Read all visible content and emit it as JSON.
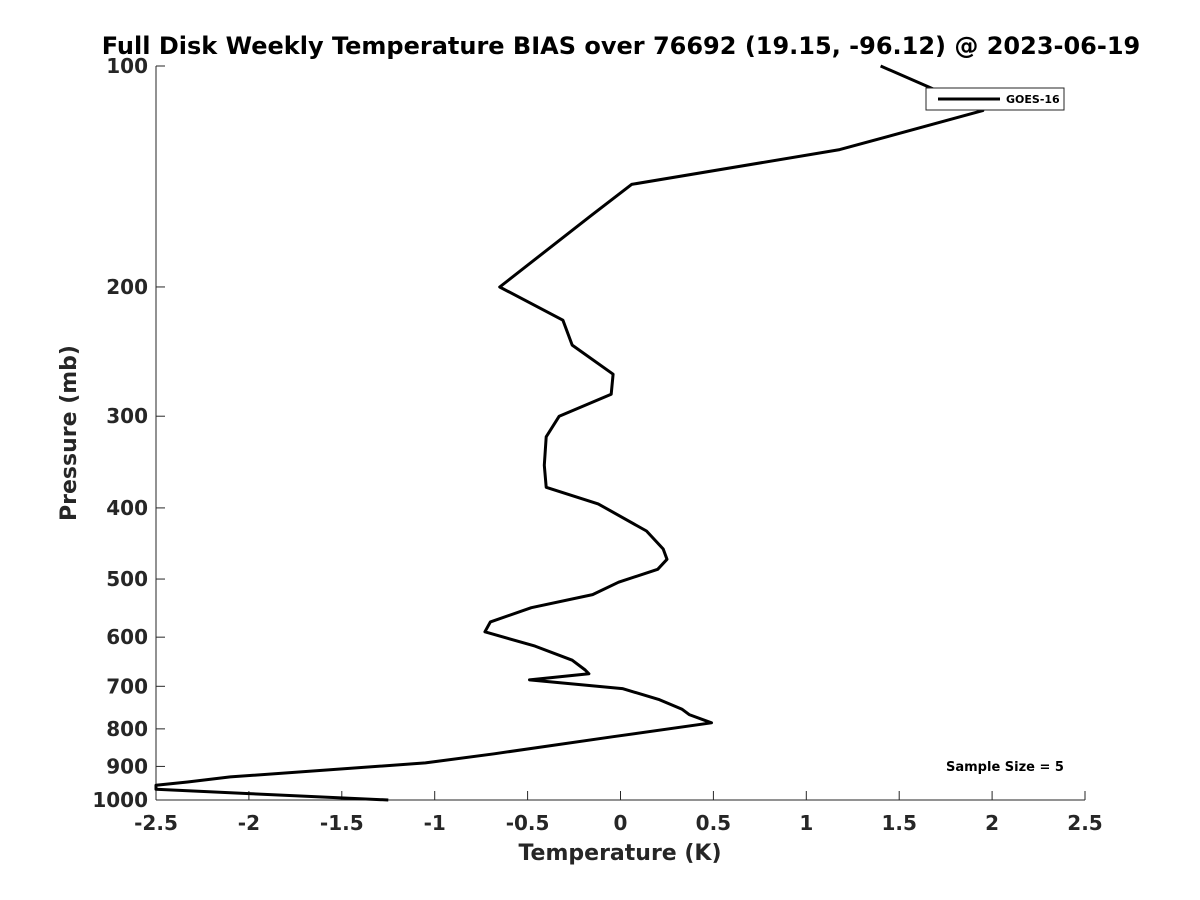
{
  "chart_data": {
    "type": "line",
    "title": "Full Disk Weekly Temperature BIAS over 76692 (19.15, -96.12) @ 2023-06-19",
    "xlabel": "Temperature (K)",
    "ylabel": "Pressure (mb)",
    "xlim": [
      -2.5,
      2.5
    ],
    "ylim": [
      1000,
      100
    ],
    "y_scale": "log",
    "y_reversed": true,
    "grid": false,
    "legend_position": "top-right",
    "x_ticks": [
      "-2.5",
      "-2",
      "-1.5",
      "-1",
      "-0.5",
      "0",
      "0.5",
      "1",
      "1.5",
      "2",
      "2.5"
    ],
    "y_ticks": [
      "100",
      "200",
      "300",
      "400",
      "500",
      "600",
      "700",
      "800",
      "900",
      "1000"
    ],
    "annotation": "Sample Size = 5",
    "series": [
      {
        "name": "GOES-16",
        "color": "#000000",
        "points": [
          [
            1.4,
            100
          ],
          [
            1.95,
            115
          ],
          [
            1.18,
            130
          ],
          [
            0.06,
            145
          ],
          [
            -0.16,
            160
          ],
          [
            -0.65,
            200
          ],
          [
            -0.31,
            222
          ],
          [
            -0.26,
            240
          ],
          [
            -0.04,
            263
          ],
          [
            -0.05,
            280
          ],
          [
            -0.33,
            300
          ],
          [
            -0.4,
            320
          ],
          [
            -0.41,
            350
          ],
          [
            -0.4,
            375
          ],
          [
            -0.12,
            395
          ],
          [
            0.14,
            430
          ],
          [
            0.23,
            455
          ],
          [
            0.25,
            470
          ],
          [
            0.2,
            485
          ],
          [
            -0.01,
            505
          ],
          [
            -0.15,
            525
          ],
          [
            -0.48,
            547
          ],
          [
            -0.7,
            572
          ],
          [
            -0.73,
            590
          ],
          [
            -0.46,
            617
          ],
          [
            -0.26,
            645
          ],
          [
            -0.19,
            665
          ],
          [
            -0.17,
            673
          ],
          [
            -0.49,
            686
          ],
          [
            0.01,
            705
          ],
          [
            0.21,
            730
          ],
          [
            0.33,
            752
          ],
          [
            0.37,
            765
          ],
          [
            0.49,
            785
          ],
          [
            -0.04,
            820
          ],
          [
            -0.68,
            865
          ],
          [
            -1.05,
            890
          ],
          [
            -2.1,
            930
          ],
          [
            -2.33,
            945
          ],
          [
            -2.5,
            955
          ],
          [
            -2.5,
            967
          ],
          [
            -2.0,
            980
          ],
          [
            -1.25,
            1000
          ]
        ]
      }
    ]
  }
}
